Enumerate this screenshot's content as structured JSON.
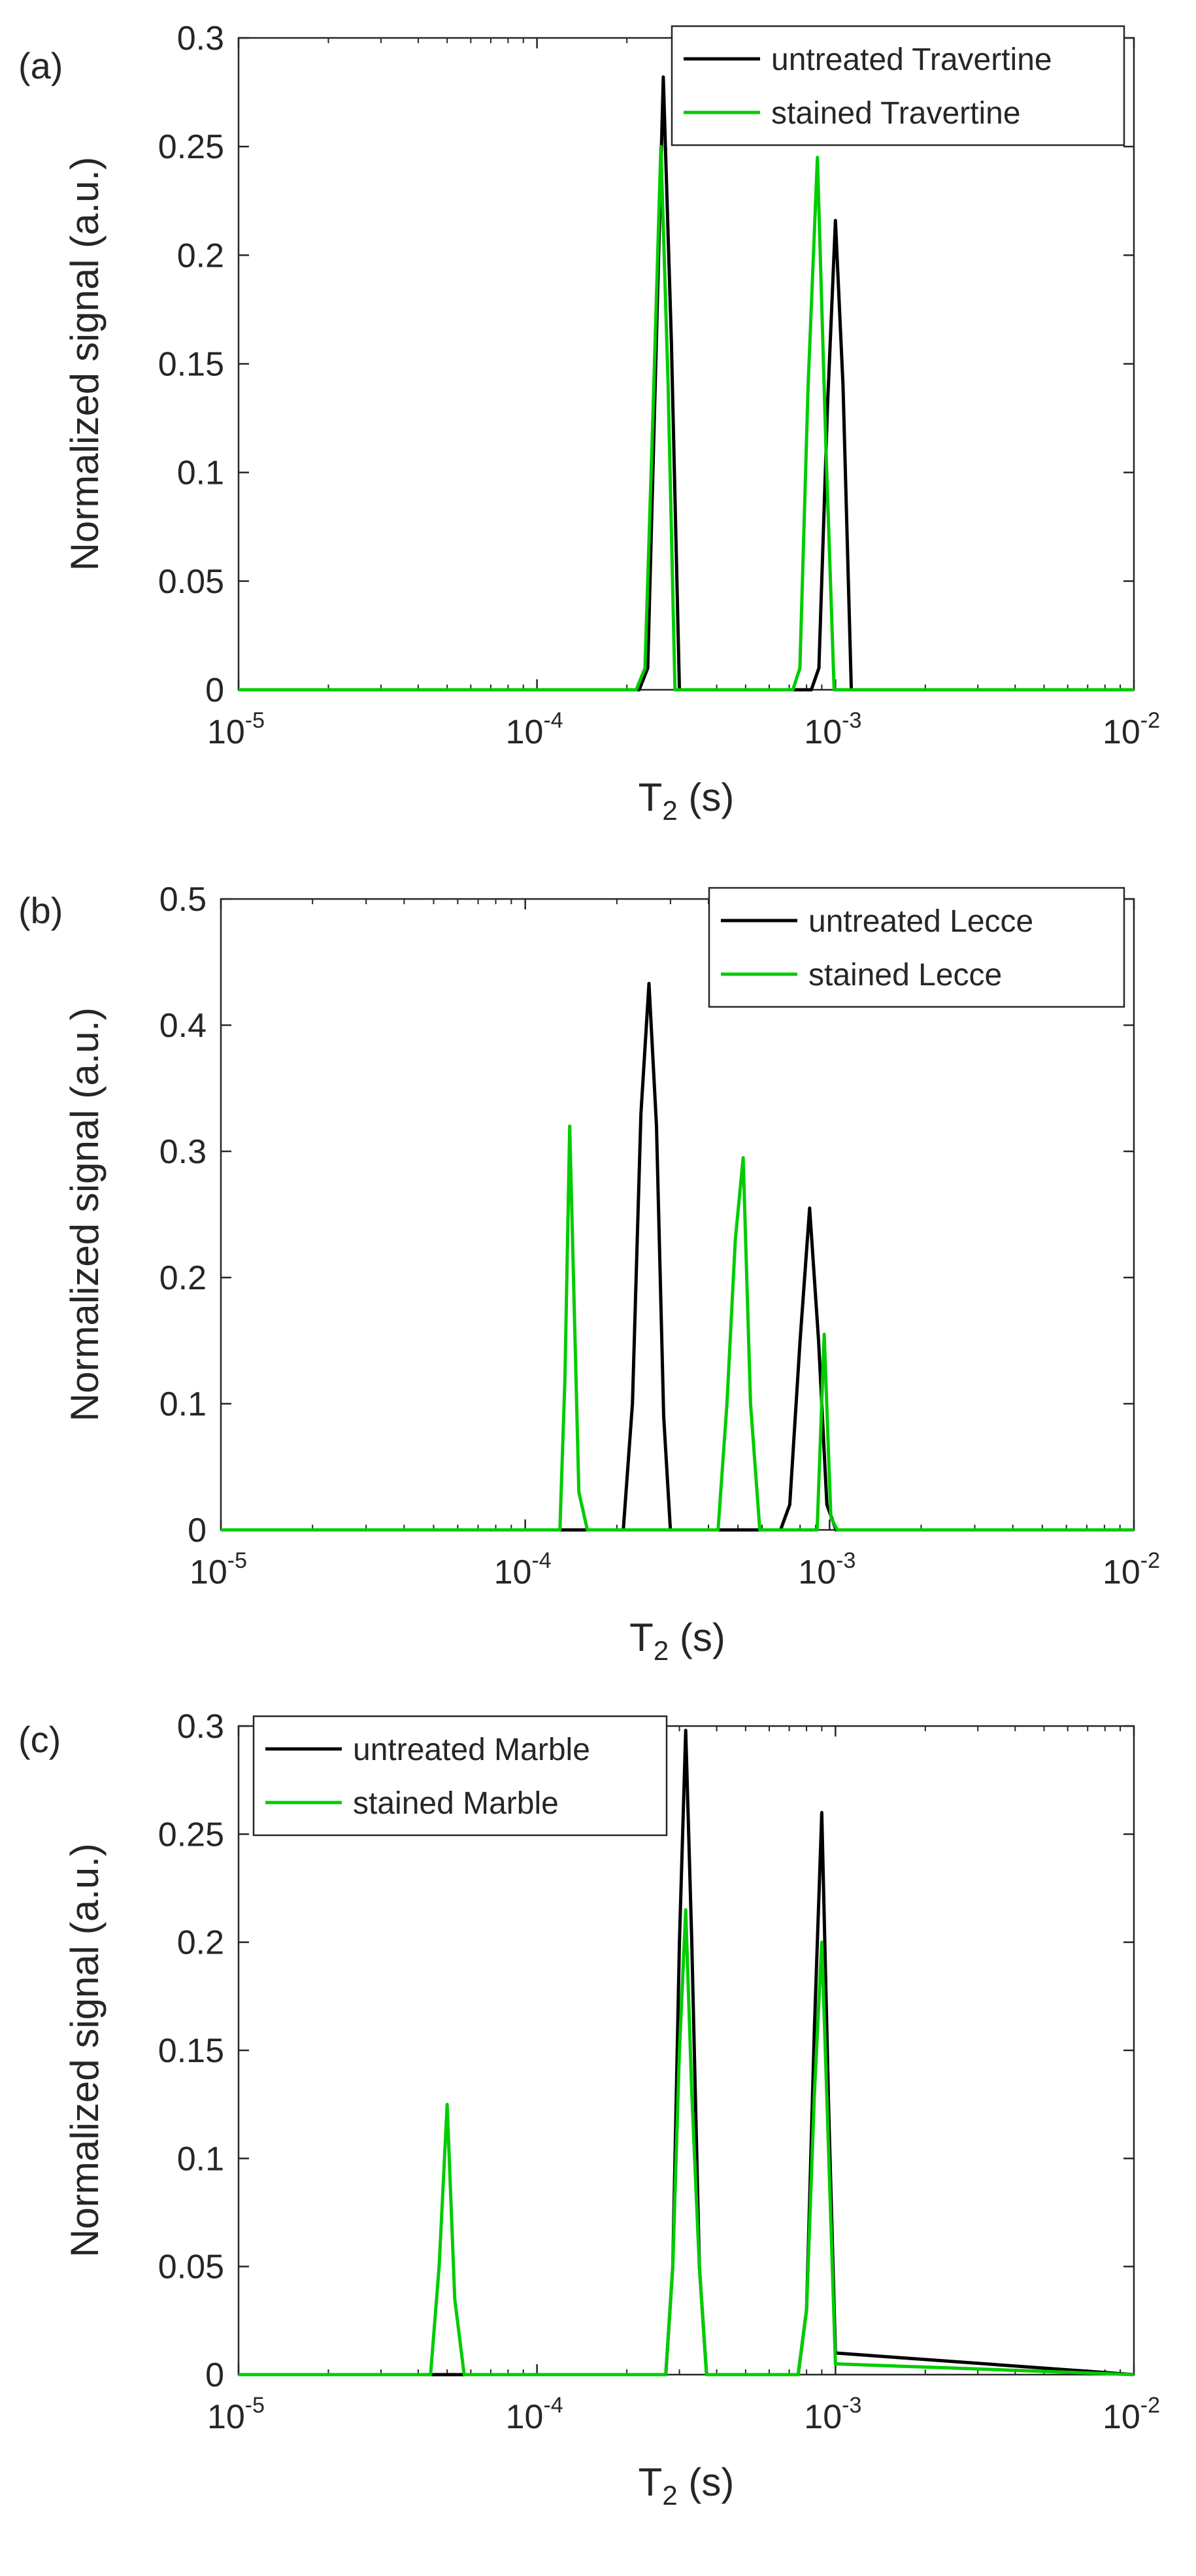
{
  "chart_data": [
    {
      "type": "line",
      "panel_label": "(a)",
      "title": "",
      "xscale": "log",
      "xlabel": "T2 (s)",
      "ylabel": "Normalized signal (a.u.)",
      "xlim": [
        1e-05,
        0.01
      ],
      "ylim": [
        0,
        0.3
      ],
      "xticks": [
        1e-05,
        0.0001,
        0.001,
        0.01
      ],
      "xtick_labels": [
        {
          "base": "10",
          "exp": "-5"
        },
        {
          "base": "10",
          "exp": "-4"
        },
        {
          "base": "10",
          "exp": "-3"
        },
        {
          "base": "10",
          "exp": "-2"
        }
      ],
      "yticks": [
        0,
        0.05,
        0.1,
        0.15,
        0.2,
        0.25,
        0.3
      ],
      "ytick_labels": [
        "0",
        "0.05",
        "0.1",
        "0.15",
        "0.2",
        "0.25",
        "0.3"
      ],
      "legend_position": "top-right",
      "series": [
        {
          "name": "untreated Travertine",
          "color": "#000000",
          "x": [
            1e-05,
            0.00022,
            0.000235,
            0.00025,
            0.000265,
            0.000282,
            0.0003,
            0.00083,
            0.00088,
            0.00094,
            0.001,
            0.00106,
            0.00113,
            0.01
          ],
          "y": [
            0,
            0,
            0.01,
            0.15,
            0.282,
            0.16,
            0,
            0,
            0.01,
            0.13,
            0.216,
            0.14,
            0,
            0
          ]
        },
        {
          "name": "stained Travertine",
          "color": "#00cc00",
          "x": [
            1e-05,
            0.000215,
            0.00023,
            0.000245,
            0.00026,
            0.000275,
            0.00029,
            0.00072,
            0.00076,
            0.00081,
            0.00087,
            0.00093,
            0.00099,
            0.01
          ],
          "y": [
            0,
            0,
            0.01,
            0.13,
            0.25,
            0.14,
            0,
            0,
            0.01,
            0.14,
            0.245,
            0.11,
            0,
            0
          ]
        }
      ]
    },
    {
      "type": "line",
      "panel_label": "(b)",
      "title": "",
      "xscale": "log",
      "xlabel": "T2 (s)",
      "ylabel": "Normalized signal (a.u.)",
      "xlim": [
        1e-05,
        0.01
      ],
      "ylim": [
        0,
        0.5
      ],
      "xticks": [
        1e-05,
        0.0001,
        0.001,
        0.01
      ],
      "xtick_labels": [
        {
          "base": "10",
          "exp": "-5"
        },
        {
          "base": "10",
          "exp": "-4"
        },
        {
          "base": "10",
          "exp": "-3"
        },
        {
          "base": "10",
          "exp": "-2"
        }
      ],
      "yticks": [
        0,
        0.1,
        0.2,
        0.3,
        0.4,
        0.5
      ],
      "ytick_labels": [
        "0",
        "0.1",
        "0.2",
        "0.3",
        "0.4",
        "0.5"
      ],
      "legend_position": "top-right",
      "series": [
        {
          "name": "untreated Lecce",
          "color": "#000000",
          "x": [
            1e-05,
            0.00021,
            0.000225,
            0.00024,
            0.000255,
            0.00027,
            0.000285,
            0.0003,
            0.00069,
            0.00074,
            0.0008,
            0.00086,
            0.00092,
            0.00098,
            0.00105,
            0.01
          ],
          "y": [
            0,
            0,
            0.1,
            0.33,
            0.433,
            0.32,
            0.09,
            0,
            0,
            0.02,
            0.15,
            0.255,
            0.15,
            0.02,
            0,
            0
          ]
        },
        {
          "name": "stained Lecce",
          "color": "#00cc00",
          "x": [
            1e-05,
            0.00013,
            0.000135,
            0.00014,
            0.00015,
            0.00016,
            0.00043,
            0.00046,
            0.00049,
            0.00052,
            0.00055,
            0.00059,
            0.00091,
            0.00096,
            0.00101,
            0.00106,
            0.01
          ],
          "y": [
            0,
            0,
            0.12,
            0.32,
            0.03,
            0,
            0,
            0.1,
            0.23,
            0.295,
            0.1,
            0,
            0,
            0.155,
            0.01,
            0,
            0
          ]
        }
      ]
    },
    {
      "type": "line",
      "panel_label": "(c)",
      "title": "",
      "xscale": "log",
      "xlabel": "T2 (s)",
      "ylabel": "Normalized signal (a.u.)",
      "xlim": [
        1e-05,
        0.01
      ],
      "ylim": [
        0,
        0.3
      ],
      "xticks": [
        1e-05,
        0.0001,
        0.001,
        0.01
      ],
      "xtick_labels": [
        {
          "base": "10",
          "exp": "-5"
        },
        {
          "base": "10",
          "exp": "-4"
        },
        {
          "base": "10",
          "exp": "-3"
        },
        {
          "base": "10",
          "exp": "-2"
        }
      ],
      "yticks": [
        0,
        0.05,
        0.1,
        0.15,
        0.2,
        0.25,
        0.3
      ],
      "ytick_labels": [
        "0",
        "0.05",
        "0.1",
        "0.15",
        "0.2",
        "0.25",
        "0.3"
      ],
      "legend_position": "top-left",
      "series": [
        {
          "name": "untreated Marble",
          "color": "#000000",
          "x": [
            1e-05,
            0.00027,
            0.000285,
            0.0003,
            0.000315,
            0.00033,
            0.00035,
            0.00037,
            0.00075,
            0.0008,
            0.00085,
            0.0009,
            0.00095,
            0.001,
            0.01
          ],
          "y": [
            0,
            0,
            0.05,
            0.2,
            0.298,
            0.2,
            0.05,
            0,
            0,
            0.03,
            0.16,
            0.26,
            0.12,
            0.01,
            0
          ]
        },
        {
          "name": "stained Marble",
          "color": "#00cc00",
          "x": [
            1e-05,
            4.4e-05,
            4.7e-05,
            5e-05,
            5.3e-05,
            5.7e-05,
            0.00027,
            0.000285,
            0.0003,
            0.000315,
            0.00033,
            0.00035,
            0.00037,
            0.00075,
            0.0008,
            0.00085,
            0.0009,
            0.00095,
            0.001,
            0.01
          ],
          "y": [
            0,
            0,
            0.05,
            0.125,
            0.035,
            0,
            0,
            0.05,
            0.15,
            0.215,
            0.13,
            0.05,
            0,
            0,
            0.03,
            0.13,
            0.2,
            0.1,
            0.005,
            0
          ]
        }
      ]
    }
  ]
}
